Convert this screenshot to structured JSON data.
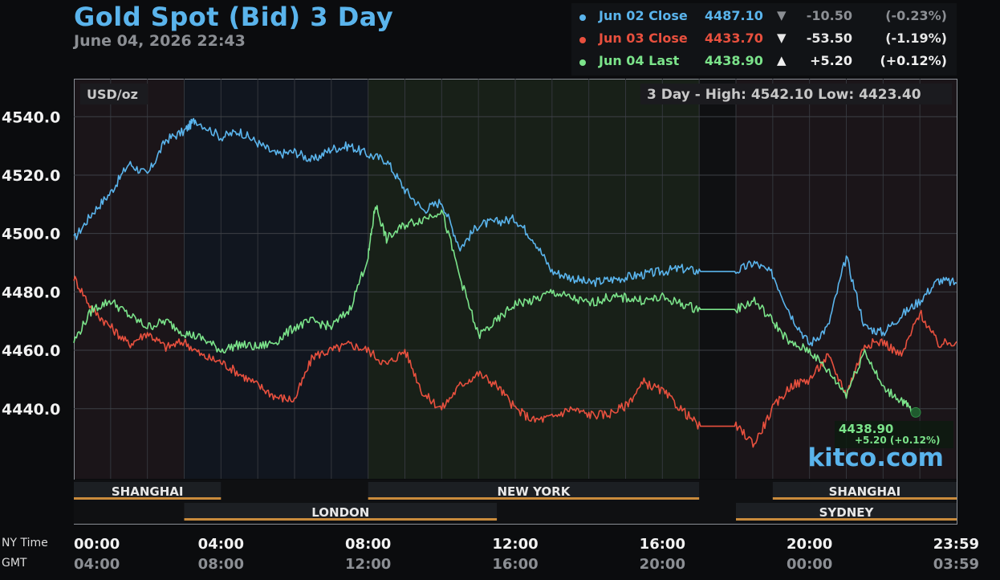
{
  "title": "Gold Spot (Bid) 3 Day",
  "datetime": "June 04, 2026 22:43",
  "legend": [
    {
      "name": "Jun 02 Close",
      "value": "4487.10",
      "arrow": "▼",
      "change": "-10.50",
      "pct": "(-0.23%)",
      "color": "#5ab4ec",
      "name_color": "#5ab4ec",
      "num_color": "#8c8f94"
    },
    {
      "name": "Jun 03 Close",
      "value": "4433.70",
      "arrow": "▼",
      "change": "-53.50",
      "pct": "(-1.19%)",
      "color": "#e8503e",
      "name_color": "#e8503e",
      "num_color": "#e6e6e6"
    },
    {
      "name": "Jun 04 Last",
      "value": "4438.90",
      "arrow": "▲",
      "change": "+5.20",
      "pct": "(+0.12%)",
      "color": "#7be38a",
      "name_color": "#7be38a",
      "num_color": "#f0f0f0"
    }
  ],
  "chart": {
    "unit_label": "USD/oz",
    "stats_label": "3 Day - High: 4542.10  Low: 4423.40",
    "watermark": "kitco.com",
    "last_label": "4438.90",
    "last_change_label": "+5.20 (+0.12%)",
    "ny_time_label": "NY Time",
    "gmt_label": "GMT"
  },
  "chart_data": {
    "type": "line",
    "y_ticks": [
      "4540.0",
      "4520.0",
      "4500.0",
      "4480.0",
      "4460.0",
      "4440.0"
    ],
    "y_tick_values": [
      4540,
      4520,
      4500,
      4480,
      4460,
      4440
    ],
    "ylim": [
      4416,
      4553
    ],
    "xlim": [
      0,
      24
    ],
    "x_ticks": [
      0,
      4,
      8,
      12,
      16,
      20,
      24
    ],
    "x_tick_labels_ny": [
      "00:00",
      "04:00",
      "08:00",
      "12:00",
      "16:00",
      "20:00",
      "23:59"
    ],
    "x_tick_labels_gmt": [
      "04:00",
      "08:00",
      "12:00",
      "16:00",
      "20:00",
      "00:00",
      "03:59"
    ],
    "grid": true,
    "sessions": [
      {
        "name": "SHANGHAI",
        "start": 0,
        "end": 4,
        "row": 1
      },
      {
        "name": "NEW YORK",
        "start": 8,
        "end": 17,
        "row": 1
      },
      {
        "name": "SHANGHAI",
        "start": 19,
        "end": 24,
        "row": 1
      },
      {
        "name": "LONDON",
        "start": 3,
        "end": 11.5,
        "row": 2
      },
      {
        "name": "SYDNEY",
        "start": 18,
        "end": 24,
        "row": 2
      }
    ],
    "series": [
      {
        "name": "Jun 02 Close",
        "color": "#5ab4ec",
        "x": [
          0,
          0.5,
          1,
          1.5,
          2,
          2.5,
          3,
          3.3,
          4,
          4.5,
          5,
          5.5,
          6,
          6.5,
          7,
          7.5,
          8,
          8.5,
          9,
          9.5,
          10,
          10.5,
          11,
          11.5,
          12,
          12.5,
          13,
          13.5,
          14,
          14.5,
          15,
          15.5,
          16,
          16.5,
          17,
          17.5,
          18,
          18.5,
          19,
          19.5,
          20,
          20.5,
          21,
          21.5,
          22,
          22.5,
          23,
          23.5,
          24
        ],
        "y": [
          4498,
          4507,
          4514,
          4524,
          4520,
          4532,
          4535,
          4539,
          4533,
          4535,
          4531,
          4527,
          4528,
          4525,
          4529,
          4530,
          4527,
          4525,
          4515,
          4508,
          4511,
          4495,
          4503,
          4504,
          4505,
          4498,
          4487,
          4485,
          4483,
          4484,
          4485,
          4486,
          4487,
          4488,
          4487,
          4487,
          4487,
          4490,
          4486,
          4472,
          4462,
          4468,
          4492,
          4468,
          4466,
          4472,
          4477,
          4484,
          4483
        ]
      },
      {
        "name": "Jun 03 Close",
        "color": "#e8503e",
        "x": [
          0,
          0.5,
          1,
          1.5,
          2,
          2.5,
          3,
          3.5,
          4,
          4.5,
          5,
          5.5,
          6,
          6.5,
          7,
          7.5,
          8,
          8.5,
          9,
          9.5,
          10,
          10.5,
          11,
          11.5,
          12,
          12.5,
          13,
          13.5,
          14,
          14.5,
          15,
          15.5,
          16,
          16.5,
          17,
          17.5,
          18,
          18.5,
          19,
          19.5,
          20,
          20.5,
          21,
          21.5,
          22,
          22.5,
          23,
          23.5,
          24
        ],
        "y": [
          4485,
          4474,
          4468,
          4462,
          4466,
          4461,
          4463,
          4458,
          4456,
          4452,
          4448,
          4444,
          4443,
          4458,
          4460,
          4462,
          4460,
          4455,
          4460,
          4445,
          4440,
          4448,
          4452,
          4448,
          4440,
          4436,
          4437,
          4440,
          4438,
          4438,
          4441,
          4449,
          4446,
          4440,
          4434,
          4434,
          4434,
          4428,
          4440,
          4448,
          4450,
          4458,
          4445,
          4462,
          4463,
          4458,
          4473,
          4462,
          4463
        ]
      },
      {
        "name": "Jun 04 Last",
        "color": "#7be38a",
        "x": [
          0,
          0.5,
          1,
          1.5,
          2,
          2.5,
          3,
          3.5,
          4,
          4.5,
          5,
          5.5,
          6,
          6.5,
          7,
          7.5,
          8,
          8.2,
          8.5,
          9,
          9.5,
          10,
          10.5,
          11,
          11.5,
          12,
          12.5,
          13,
          13.5,
          14,
          14.5,
          15,
          15.5,
          16,
          16.5,
          17,
          17.5,
          18,
          18.5,
          19,
          19.5,
          20,
          20.5,
          21,
          21.5,
          22,
          22.5,
          22.8
        ],
        "y": [
          4463,
          4474,
          4477,
          4472,
          4468,
          4470,
          4466,
          4464,
          4460,
          4462,
          4461,
          4463,
          4468,
          4470,
          4468,
          4474,
          4492,
          4510,
          4498,
          4503,
          4505,
          4508,
          4485,
          4465,
          4470,
          4476,
          4477,
          4480,
          4478,
          4476,
          4478,
          4478,
          4477,
          4478,
          4476,
          4474,
          4474,
          4474,
          4477,
          4470,
          4462,
          4460,
          4453,
          4445,
          4460,
          4447,
          4443,
          4439
        ]
      }
    ]
  }
}
